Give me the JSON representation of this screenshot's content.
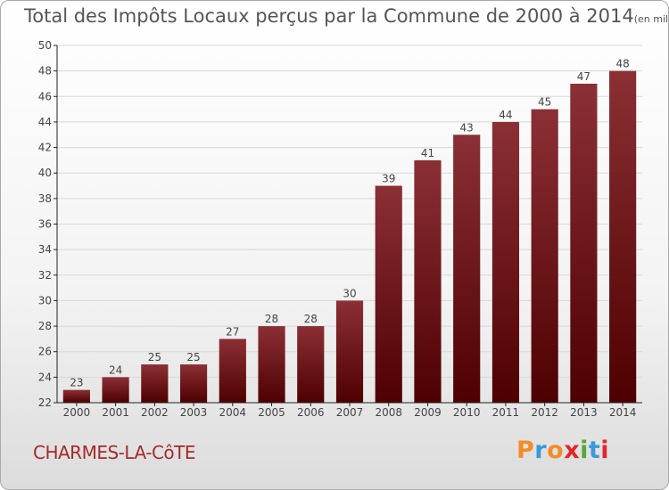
{
  "header": {
    "title": "Total des Impôts Locaux perçus par la Commune de 2000 à 2014",
    "unit": "(en milliers d'€)"
  },
  "footer": {
    "commune": "CHARMES-LA-CôTE",
    "logo_text": "Proxiti",
    "logo_colors": [
      "#f28c28",
      "#3a9ad9",
      "#f28c28",
      "#e4252b",
      "#5aa832",
      "#3a9ad9",
      "#e4252b"
    ]
  },
  "chart_data": {
    "type": "bar",
    "title": "Total des Impôts Locaux perçus par la Commune de 2000 à 2014",
    "xlabel": "",
    "ylabel": "",
    "ylim": [
      22,
      50
    ],
    "yticks": [
      22,
      24,
      26,
      28,
      30,
      32,
      34,
      36,
      38,
      40,
      42,
      44,
      46,
      48,
      50
    ],
    "grid": true,
    "categories": [
      "2000",
      "2001",
      "2002",
      "2003",
      "2004",
      "2005",
      "2006",
      "2007",
      "2008",
      "2009",
      "2010",
      "2011",
      "2012",
      "2013",
      "2014"
    ],
    "values": [
      23,
      24,
      25,
      25,
      27,
      28,
      28,
      30,
      39,
      41,
      43,
      44,
      45,
      47,
      48
    ],
    "colors": {
      "bar_top": "#8b3035",
      "bar_bottom": "#4e0000",
      "grid": "#d8d8d8",
      "axis": "#222222"
    }
  }
}
